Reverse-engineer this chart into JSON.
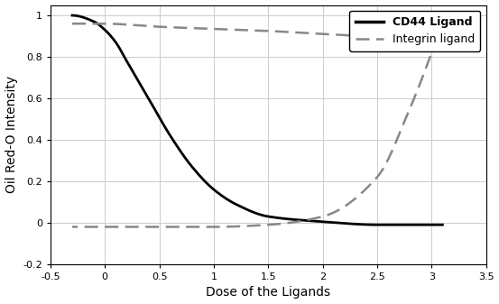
{
  "title": "",
  "xlabel": "Dose of the Ligands",
  "ylabel": "Oil Red-O Intensity",
  "xlim": [
    -0.5,
    3.5
  ],
  "ylim": [
    -0.2,
    1.05
  ],
  "xticks": [
    -0.5,
    0.0,
    0.5,
    1.0,
    1.5,
    2.0,
    2.5,
    3.0,
    3.5
  ],
  "yticks": [
    -0.2,
    0.0,
    0.2,
    0.4,
    0.6,
    0.8,
    1.0
  ],
  "cd44_color": "#000000",
  "integrin_color": "#888888",
  "legend_entries": [
    "CD44 Ligand",
    "Integrin ligand"
  ],
  "background_color": "#ffffff",
  "grid_color": "#cccccc",
  "cd44_ctrl_x": [
    -0.3,
    -0.1,
    0.0,
    0.1,
    0.2,
    0.4,
    0.6,
    0.8,
    1.0,
    1.2,
    1.5,
    2.0,
    2.5,
    3.0
  ],
  "cd44_ctrl_y": [
    1.0,
    0.97,
    0.93,
    0.87,
    0.78,
    0.6,
    0.42,
    0.27,
    0.16,
    0.09,
    0.03,
    0.005,
    -0.01,
    -0.01
  ],
  "int_upper_ctrl_x": [
    -0.3,
    0.0,
    0.5,
    1.0,
    1.5,
    2.0,
    2.5,
    3.0
  ],
  "int_upper_ctrl_y": [
    0.96,
    0.96,
    0.945,
    0.935,
    0.925,
    0.91,
    0.895,
    0.82
  ],
  "int_lower_ctrl_x": [
    3.0,
    2.8,
    2.5,
    2.0,
    1.5,
    1.0,
    0.5,
    0.0,
    -0.3
  ],
  "int_lower_ctrl_y": [
    0.82,
    0.55,
    0.22,
    0.03,
    -0.01,
    -0.02,
    -0.02,
    -0.02,
    -0.02
  ]
}
